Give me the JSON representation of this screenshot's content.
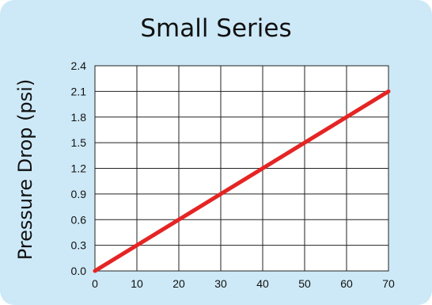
{
  "chart_data": {
    "type": "line",
    "title": "Small Series",
    "xlabel": "",
    "ylabel": "Pressure Drop (psi)",
    "xlim": [
      0,
      70
    ],
    "ylim": [
      0,
      2.4
    ],
    "x_ticks": [
      "0",
      "10",
      "20",
      "30",
      "40",
      "50",
      "60",
      "70"
    ],
    "y_ticks": [
      "0.0",
      "0.3",
      "0.6",
      "0.9",
      "1.2",
      "1.5",
      "1.8",
      "2.1",
      "2.4"
    ],
    "grid": true,
    "legend": "none",
    "series": [
      {
        "values": [
          [
            0,
            0.0
          ],
          [
            70,
            2.1
          ]
        ],
        "color": "#e42524"
      }
    ]
  },
  "colors": {
    "panel_background": "#cde9f7",
    "plot_background": "#ffffff",
    "grid": "#222222",
    "line": "#e42524"
  }
}
